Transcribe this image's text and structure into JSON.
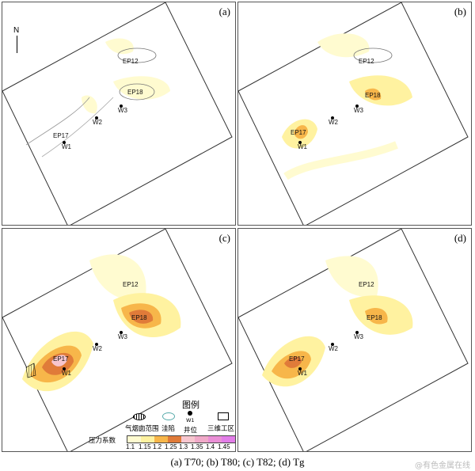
{
  "panels": [
    {
      "id": "a",
      "label": "(a)"
    },
    {
      "id": "b",
      "label": "(b)"
    },
    {
      "id": "c",
      "label": "(c)"
    },
    {
      "id": "d",
      "label": "(d)"
    }
  ],
  "wells": {
    "w1": "W1",
    "w2": "W2",
    "w3": "W3"
  },
  "zones": {
    "ep12": "EP12",
    "ep17": "EP17",
    "ep18": "EP18"
  },
  "north": "N",
  "legend": {
    "title": "图例",
    "items": [
      "气烟囱范围",
      "洼陷",
      "井位",
      "三维工区"
    ],
    "well_sample": "W1",
    "scale_label": "压力系数",
    "scale_values": [
      "1.1",
      "1.15",
      "1.2",
      "1.25",
      "1.3",
      "1.35",
      "1.4",
      "1.45"
    ],
    "scale_colors": [
      "#fffbd0",
      "#fff2a0",
      "#f7b64a",
      "#e07b39",
      "#f7c6cf",
      "#f0a9c8",
      "#ea8fd6",
      "#e27de8"
    ]
  },
  "caption": "(a) T70; (b) T80; (c) T82; (d) Tg",
  "watermark": "@有色金属在线"
}
